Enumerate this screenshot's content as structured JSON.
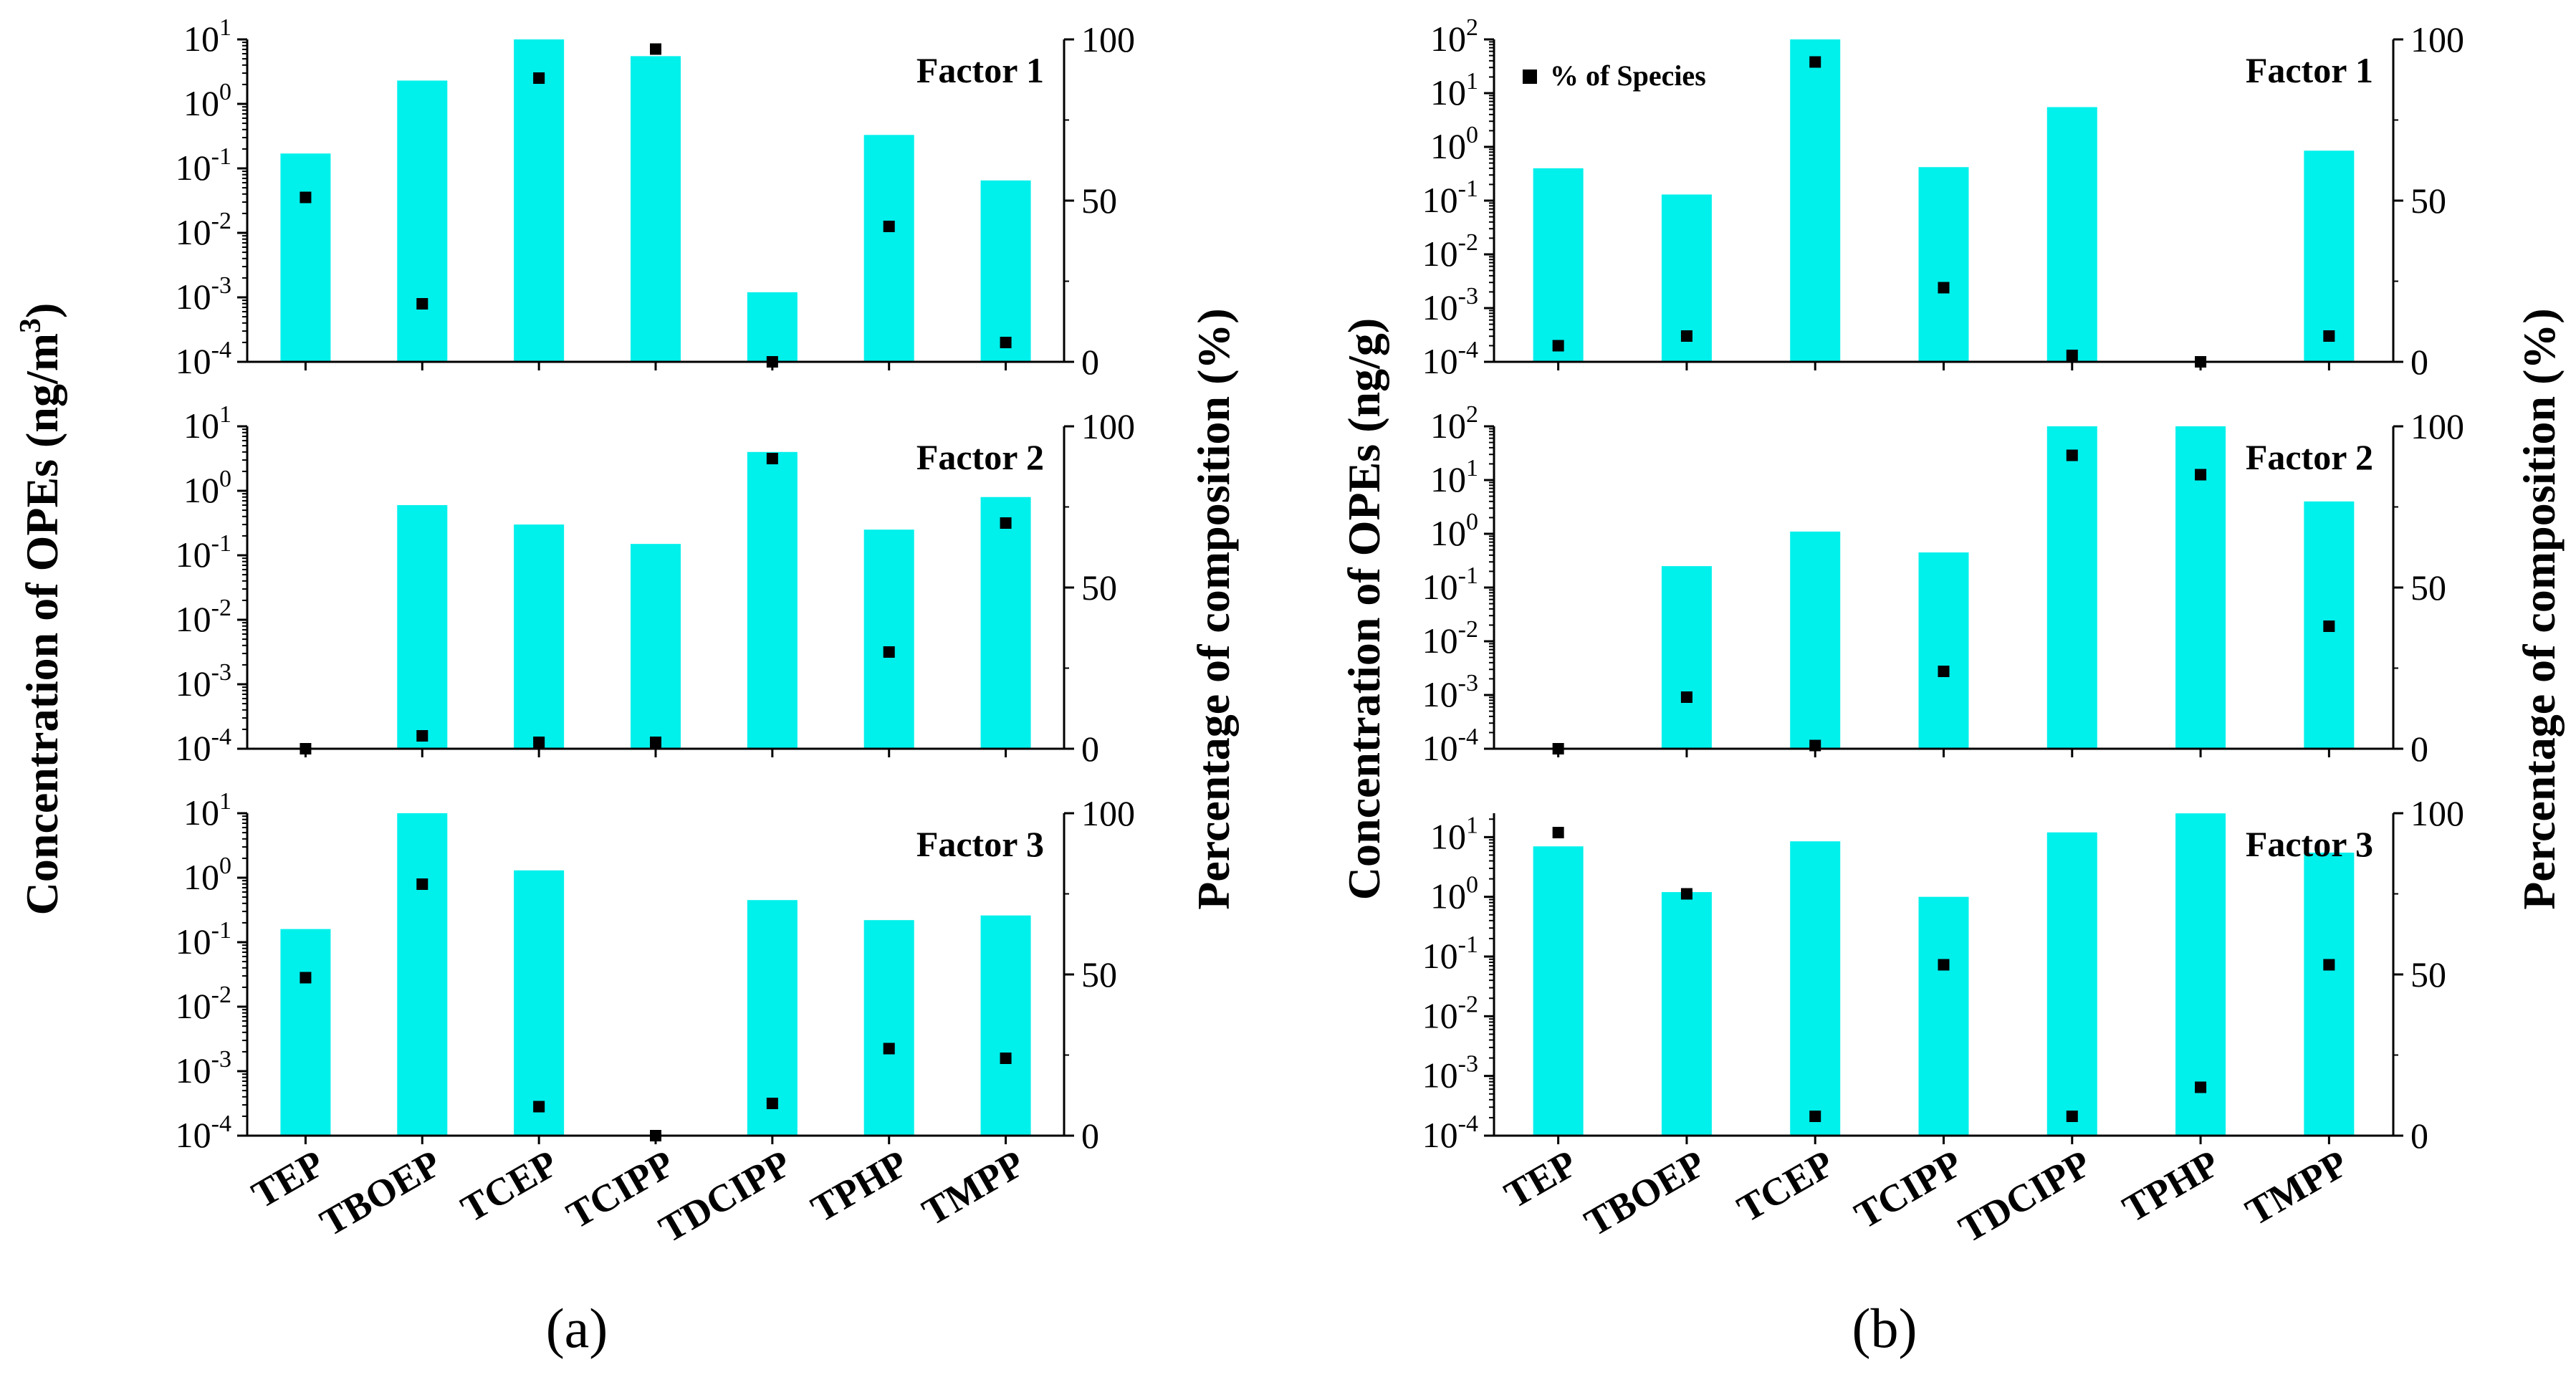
{
  "colors": {
    "bar": "#00F0EB",
    "marker": "#000000",
    "axis": "#000000"
  },
  "chart_data": [
    {
      "id": "a",
      "panel_label": "(a)",
      "type": "bar",
      "left_ylabel": "Concentration of OPEs (ng/m",
      "left_ylabel_sup": "3",
      "left_ylabel_tail": ")",
      "right_ylabel": "Percentage of composition (%)",
      "categories": [
        "TEP",
        "TBOEP",
        "TCEP",
        "TCIPP",
        "TDCIPP",
        "TPHP",
        "TMPP"
      ],
      "log_scale": true,
      "right_ylim": [
        0,
        100
      ],
      "right_ticks": [
        "0",
        "50",
        "100"
      ],
      "factors": [
        {
          "label": "Factor 1",
          "ylim_exp": [
            -4,
            1
          ],
          "left_ticks": [
            {
              "b": "10",
              "e": "-4"
            },
            {
              "b": "10",
              "e": "-3"
            },
            {
              "b": "10",
              "e": "-2"
            },
            {
              "b": "10",
              "e": "-1"
            },
            {
              "b": "10",
              "e": "0"
            },
            {
              "b": "10",
              "e": "1"
            }
          ],
          "bars_concentration": [
            0.17,
            2.3,
            12,
            5.5,
            0.0012,
            0.33,
            0.065
          ],
          "percent_species": [
            51,
            18,
            88,
            97,
            0,
            42,
            6
          ]
        },
        {
          "label": "Factor 2",
          "ylim_exp": [
            -4,
            1
          ],
          "left_ticks": [
            {
              "b": "10",
              "e": "-4"
            },
            {
              "b": "10",
              "e": "-3"
            },
            {
              "b": "10",
              "e": "-2"
            },
            {
              "b": "10",
              "e": "-1"
            },
            {
              "b": "10",
              "e": "0"
            },
            {
              "b": "10",
              "e": "1"
            }
          ],
          "bars_concentration": [
            null,
            0.6,
            0.3,
            0.15,
            4.0,
            0.25,
            0.8
          ],
          "percent_species": [
            0,
            4,
            2,
            2,
            90,
            30,
            70
          ]
        },
        {
          "label": "Factor 3",
          "ylim_exp": [
            -4,
            1
          ],
          "left_ticks": [
            {
              "b": "10",
              "e": "-4"
            },
            {
              "b": "10",
              "e": "-3"
            },
            {
              "b": "10",
              "e": "-2"
            },
            {
              "b": "10",
              "e": "-1"
            },
            {
              "b": "10",
              "e": "0"
            },
            {
              "b": "10",
              "e": "1"
            }
          ],
          "bars_concentration": [
            0.16,
            12,
            1.3,
            null,
            0.45,
            0.22,
            0.26
          ],
          "percent_species": [
            49,
            78,
            9,
            0,
            10,
            27,
            24
          ]
        }
      ]
    },
    {
      "id": "b",
      "panel_label": "(b)",
      "type": "bar",
      "left_ylabel": "Concentration of OPEs (ng/g)",
      "left_ylabel_sup": "",
      "left_ylabel_tail": "",
      "right_ylabel": "Percentage of composition (%)",
      "categories": [
        "TEP",
        "TBOEP",
        "TCEP",
        "TCIPP",
        "TDCIPP",
        "TPHP",
        "TMPP"
      ],
      "log_scale": true,
      "right_ylim": [
        0,
        100
      ],
      "right_ticks": [
        "0",
        "50",
        "100"
      ],
      "legend": {
        "label": "% of Species",
        "position": "top-left",
        "panel": 0
      },
      "factors": [
        {
          "label": "Factor 1",
          "ylim_exp": [
            -4,
            2
          ],
          "left_ticks": [
            {
              "b": "10",
              "e": "-4"
            },
            {
              "b": "10",
              "e": "-3"
            },
            {
              "b": "10",
              "e": "-2"
            },
            {
              "b": "10",
              "e": "-1"
            },
            {
              "b": "10",
              "e": "0"
            },
            {
              "b": "10",
              "e": "1"
            },
            {
              "b": "10",
              "e": "2"
            }
          ],
          "bars_concentration": [
            0.4,
            0.13,
            200,
            0.42,
            5.5,
            null,
            0.85
          ],
          "percent_species": [
            5,
            8,
            93,
            23,
            2,
            0,
            8
          ]
        },
        {
          "label": "Factor 2",
          "ylim_exp": [
            -4,
            2
          ],
          "left_ticks": [
            {
              "b": "10",
              "e": "-4"
            },
            {
              "b": "10",
              "e": "-3"
            },
            {
              "b": "10",
              "e": "-2"
            },
            {
              "b": "10",
              "e": "-1"
            },
            {
              "b": "10",
              "e": "0"
            },
            {
              "b": "10",
              "e": "1"
            },
            {
              "b": "10",
              "e": "2"
            }
          ],
          "bars_concentration": [
            null,
            0.25,
            1.1,
            0.45,
            200,
            130,
            4.0
          ],
          "percent_species": [
            0,
            16,
            1,
            24,
            91,
            85,
            38
          ]
        },
        {
          "label": "Factor 3",
          "ylim_exp": [
            -4,
            1.4
          ],
          "left_ticks": [
            {
              "b": "10",
              "e": "-4"
            },
            {
              "b": "10",
              "e": "-3"
            },
            {
              "b": "10",
              "e": "-2"
            },
            {
              "b": "10",
              "e": "-1"
            },
            {
              "b": "10",
              "e": "0"
            },
            {
              "b": "10",
              "e": "1"
            }
          ],
          "bars_concentration": [
            7.0,
            1.2,
            8.5,
            1.0,
            12,
            25,
            5.5
          ],
          "percent_species": [
            94,
            75,
            6,
            53,
            6,
            15,
            53
          ]
        }
      ]
    }
  ]
}
